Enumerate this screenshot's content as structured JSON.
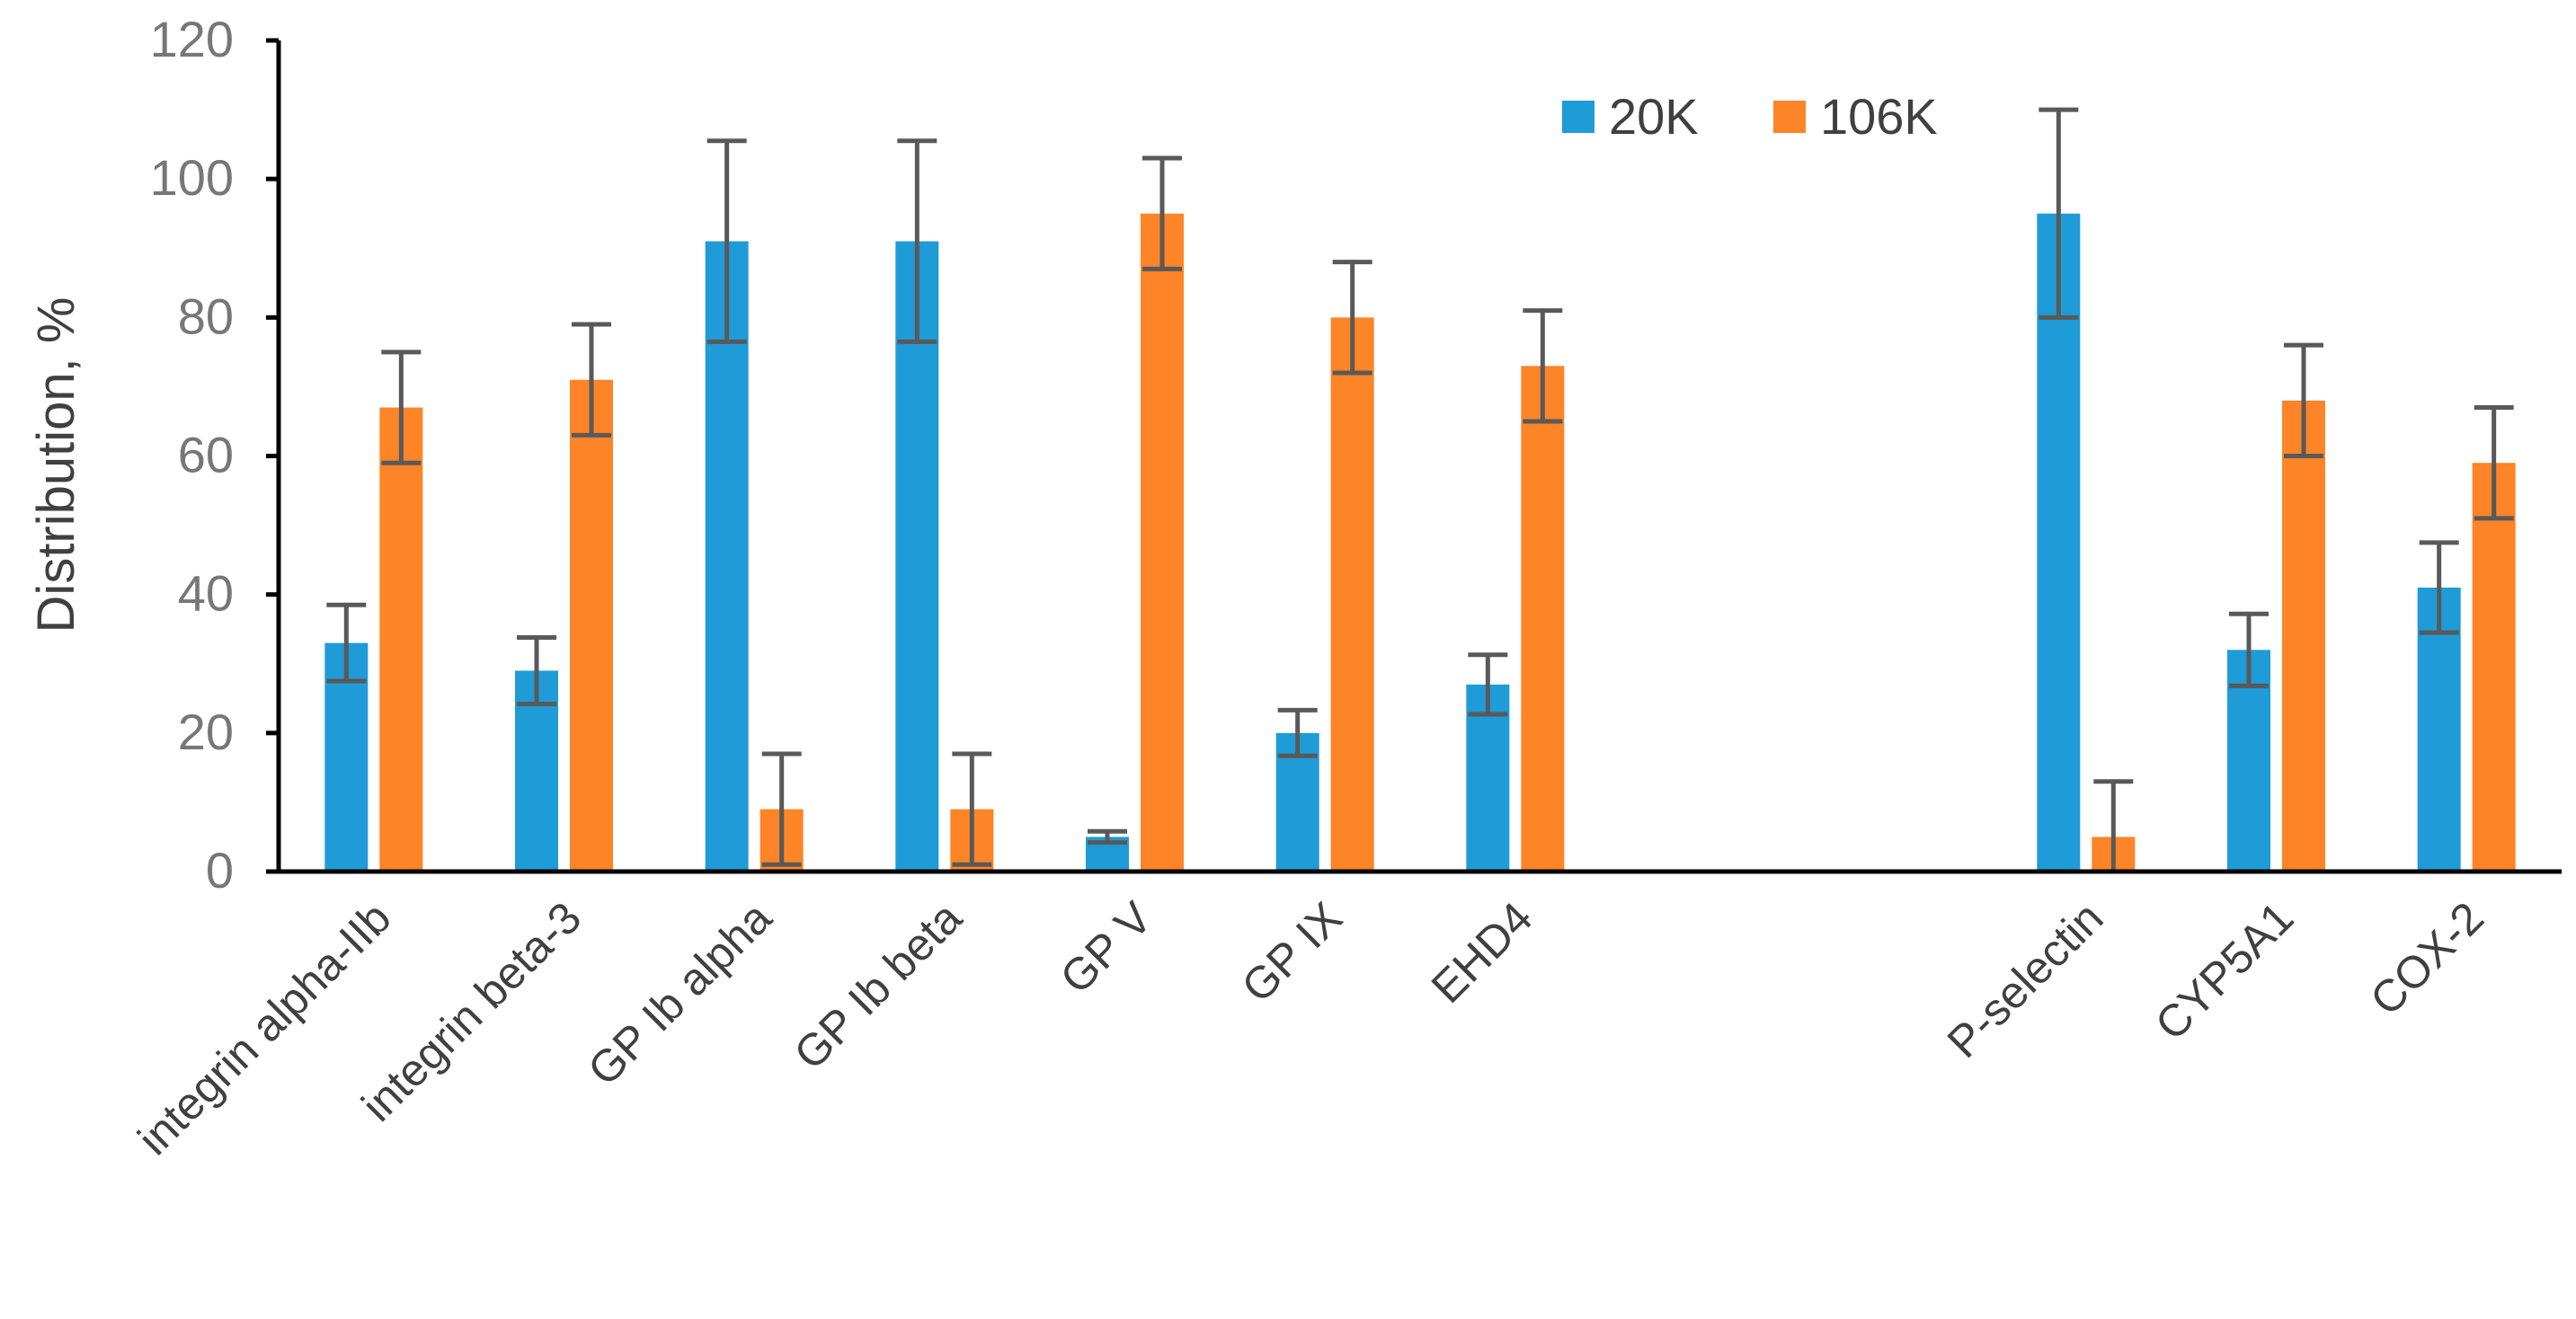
{
  "chart_data": {
    "type": "bar",
    "title": "",
    "xlabel": "",
    "ylabel": "Distribution, %",
    "ylim": [
      0,
      120
    ],
    "yticks": [
      0,
      20,
      40,
      60,
      80,
      100,
      120
    ],
    "grid": false,
    "legend_position": "top-right",
    "slots": [
      "integrin alpha-IIb",
      "integrin beta-3",
      "GP Ib alpha",
      "GP Ib beta",
      "GP V",
      "GP IX",
      "EHD4",
      "",
      "",
      "P-selectin",
      "CYP5A1",
      "COX-2"
    ],
    "categories": [
      "integrin alpha-IIb",
      "integrin beta-3",
      "GP Ib alpha",
      "GP Ib beta",
      "GP V",
      "GP IX",
      "EHD4",
      "P-selectin",
      "CYP5A1",
      "COX-2"
    ],
    "series": [
      {
        "name": "20K",
        "color": "#1f9bd7",
        "values": [
          33,
          29,
          91,
          91,
          5,
          20,
          27,
          95,
          32,
          41
        ],
        "errors": [
          5.5,
          4.8,
          14.5,
          14.5,
          0.8,
          3.3,
          4.3,
          15,
          5.2,
          6.5
        ]
      },
      {
        "name": "106K",
        "color": "#fd8427",
        "values": [
          67,
          71,
          9,
          9,
          95,
          80,
          73,
          5,
          68,
          59
        ],
        "errors": [
          8,
          8,
          8,
          8,
          8,
          8,
          8,
          8,
          8,
          8
        ]
      }
    ],
    "error_bar_color": "#595959",
    "axis_color": "#000000",
    "tick_label_color": "#777777",
    "label_color": "#404040"
  }
}
